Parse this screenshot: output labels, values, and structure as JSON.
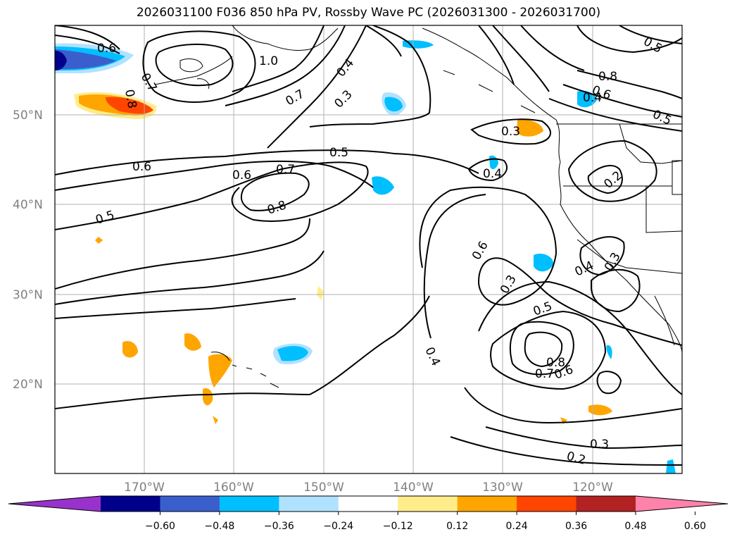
{
  "title": "2026031100 F036 850 hPa PV, Rossby Wave PC (2026031300 - 2026031700)",
  "lat_labels": [
    "50°N",
    "40°N",
    "30°N",
    "20°N"
  ],
  "lon_labels": [
    "170°W",
    "160°W",
    "150°W",
    "140°W",
    "130°W",
    "120°W"
  ],
  "colorbar": {
    "ticks": [
      "−0.60",
      "−0.48",
      "−0.36",
      "−0.24",
      "−0.12",
      "0.12",
      "0.24",
      "0.36",
      "0.48",
      "0.60"
    ],
    "colors": [
      "#9932cc",
      "#00008b",
      "#3a5fcd",
      "#00bfff",
      "#b0e2ff",
      "#ffffff",
      "#ffec8b",
      "#ffa500",
      "#ff4500",
      "#b22222",
      "#ff82ab"
    ]
  },
  "contour_labels": [
    "0.5",
    "0.6",
    "0.7",
    "0.8",
    "1.0",
    "0.6",
    "0.6",
    "0.7",
    "0.8",
    "0.5",
    "0.7",
    "0.3",
    "0.4",
    "0.5",
    "0.8",
    "0.6",
    "0.4",
    "0.5",
    "0.3",
    "0.4",
    "0.2",
    "0.6",
    "0.3",
    "0.5",
    "0.4",
    "0.3",
    "0.4",
    "0.8",
    "0.7",
    "0.6",
    "0.3",
    "0.2"
  ]
}
